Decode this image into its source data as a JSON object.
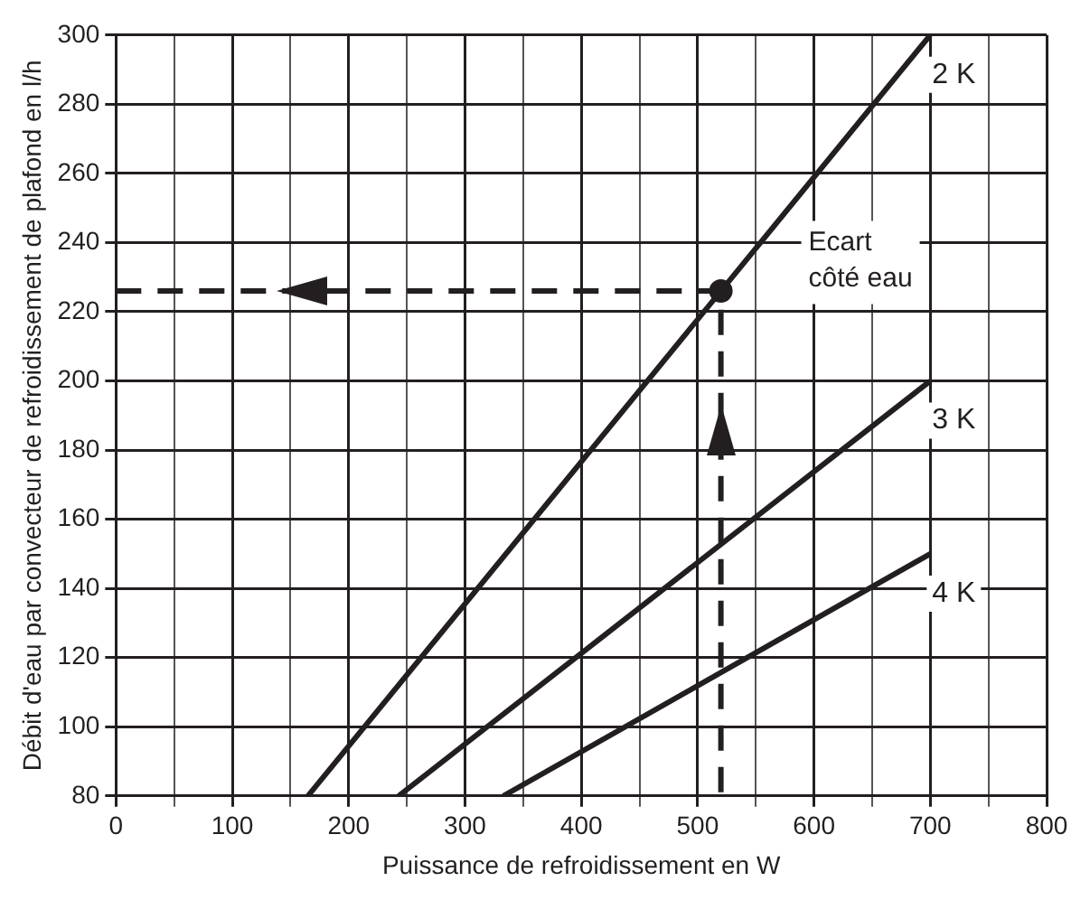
{
  "chart_data": {
    "type": "line",
    "xlabel": "Puissance de refroidissement en W",
    "ylabel": "Débit d'eau par convecteur de refroidissement de plafond en l/h",
    "xlim": [
      0,
      800
    ],
    "ylim": [
      80,
      300
    ],
    "xticks": [
      0,
      {
        "value": 50,
        "label": null
      },
      100,
      {
        "value": 150,
        "label": null
      },
      200,
      {
        "value": 250,
        "label": null
      },
      300,
      {
        "value": 350,
        "label": null
      },
      400,
      {
        "value": 450,
        "label": null
      },
      500,
      {
        "value": 550,
        "label": null
      },
      600,
      {
        "value": 650,
        "label": null
      },
      700,
      {
        "value": 750,
        "label": null
      },
      800
    ],
    "yticks": [
      80,
      100,
      120,
      140,
      160,
      180,
      200,
      220,
      240,
      260,
      280,
      300
    ],
    "grid": true,
    "legend": false,
    "marker": "none",
    "line_style": "solid",
    "annotations": [
      "Ecart\ncôté eau"
    ],
    "series": [
      {
        "name": "2 K",
        "color": "#231f20",
        "x": [
          165,
          700
        ],
        "values": [
          80,
          300
        ]
      },
      {
        "name": "3 K",
        "color": "#231f20",
        "x": [
          243,
          700
        ],
        "values": [
          80,
          200
        ]
      },
      {
        "name": "4 K",
        "color": "#231f20",
        "x": [
          333,
          700
        ],
        "values": [
          80,
          150
        ]
      },
      {
        "color": "#231f20",
        "x": [
          0,
          520,
          520
        ],
        "values": [
          226,
          226,
          80
        ],
        "line_style": "dashed"
      },
      {
        "type": "scatter",
        "color": "#231f20",
        "x": [
          520
        ],
        "values": [
          226
        ],
        "marker": "circle"
      }
    ]
  }
}
